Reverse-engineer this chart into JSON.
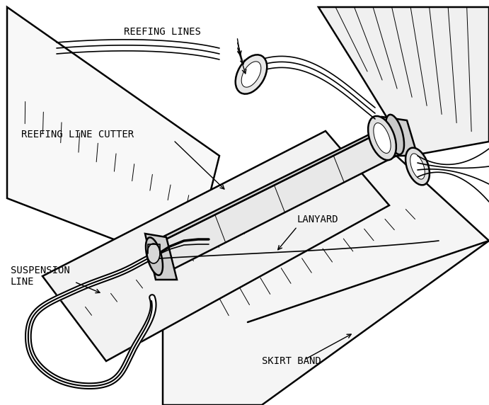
{
  "background_color": "#ffffff",
  "figsize": [
    6.91,
    5.72
  ],
  "dpi": 100,
  "labels": {
    "reefing_lines": "REEFING LINES",
    "reefing_line_cutter": "REEFING LINE CUTTER",
    "suspension_line": "SUSPENSION\nLINE",
    "lanyard": "LANYARD",
    "skirt_band": "SKIRT BAND"
  },
  "font_size": 10,
  "font_family": "monospace"
}
